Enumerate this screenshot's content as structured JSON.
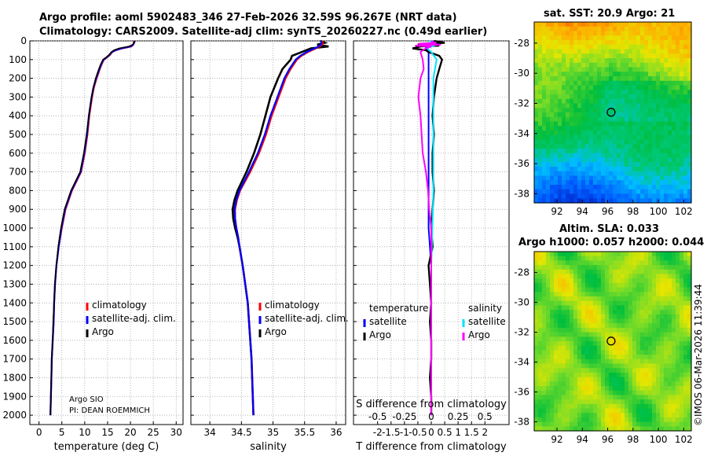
{
  "header": {
    "title_line1": "Argo profile: aoml 5902483_346 27-Feb-2026 32.59S 96.267E (NRT data)",
    "title_line2": "Climatology: CARS2009. Satellite-adj clim: synTS_20260227.nc (0.49d earlier)"
  },
  "colors": {
    "climatology": "#ff0000",
    "satellite_adj": "#0000ff",
    "argo": "#000000",
    "temp_diff_satellite": "#0000ff",
    "sal_diff_satellite": "#00e5ff",
    "diff_argo": "#ff00ff"
  },
  "chart_data": [
    {
      "type": "line",
      "id": "temperature",
      "title": "",
      "xlabel": "temperature (deg C)",
      "ylabel": "",
      "xlim": [
        -2,
        31.5
      ],
      "ylim": [
        0,
        2050
      ],
      "y_inverted": true,
      "xticks": [
        "0",
        "5",
        "10",
        "15",
        "20",
        "25",
        "30"
      ],
      "yticks": [
        "0",
        "100",
        "200",
        "300",
        "400",
        "500",
        "600",
        "700",
        "800",
        "900",
        "1000",
        "1100",
        "1200",
        "1300",
        "1400",
        "1500",
        "1600",
        "1700",
        "1800",
        "1900",
        "2000"
      ],
      "legend": [
        "climatology",
        "satellite-adj. clim.",
        "Argo"
      ],
      "annotation_lines": [
        "Argo SIO",
        "PI: DEAN ROEMMICH"
      ],
      "series": [
        {
          "name": "climatology",
          "depth": [
            0,
            5,
            10,
            20,
            30,
            40,
            50,
            60,
            75,
            90,
            100,
            125,
            150,
            200,
            250,
            300,
            400,
            500,
            600,
            700,
            800,
            900,
            1000,
            1100,
            1200,
            1300,
            1400,
            1500,
            1600,
            1700,
            1800,
            1900,
            2000
          ],
          "values": [
            20.8,
            20.8,
            20.7,
            20.6,
            20.2,
            18.2,
            16.8,
            16.0,
            15.5,
            14.8,
            14.2,
            13.7,
            13.3,
            12.6,
            12.0,
            11.6,
            11.0,
            10.6,
            10.0,
            9.2,
            7.2,
            5.8,
            5.0,
            4.3,
            3.8,
            3.5,
            3.3,
            3.2,
            3.0,
            2.8,
            2.7,
            2.6,
            2.5
          ]
        },
        {
          "name": "satellite-adj. clim.",
          "depth": [
            0,
            5,
            10,
            20,
            30,
            40,
            50,
            60,
            75,
            90,
            100,
            125,
            150,
            200,
            250,
            300,
            400,
            500,
            600,
            700,
            800,
            900,
            1000,
            1100,
            1200,
            1300,
            1400,
            1500,
            1600,
            1700,
            1800,
            1900,
            2000
          ],
          "values": [
            20.9,
            20.9,
            20.8,
            20.6,
            20.0,
            18.0,
            16.7,
            15.9,
            15.4,
            14.7,
            14.1,
            13.6,
            13.2,
            12.5,
            11.9,
            11.5,
            10.9,
            10.5,
            9.9,
            9.1,
            7.1,
            5.7,
            4.9,
            4.3,
            3.8,
            3.5,
            3.3,
            3.2,
            3.0,
            2.8,
            2.7,
            2.6,
            2.5
          ]
        },
        {
          "name": "Argo",
          "depth": [
            0,
            5,
            10,
            20,
            30,
            40,
            50,
            60,
            75,
            90,
            100,
            125,
            150,
            200,
            250,
            300,
            400,
            500,
            600,
            700,
            800,
            900,
            1000,
            1100,
            1200,
            1300,
            1400,
            1500,
            1600,
            1700,
            1800,
            1900,
            2000
          ],
          "values": [
            20.9,
            20.9,
            20.8,
            20.5,
            19.6,
            17.5,
            16.4,
            15.8,
            15.3,
            14.6,
            14.0,
            13.5,
            13.1,
            12.4,
            11.9,
            11.5,
            10.9,
            10.4,
            9.8,
            9.0,
            7.0,
            5.6,
            4.8,
            4.2,
            3.8,
            3.5,
            3.3,
            3.1,
            3.0,
            2.8,
            2.7,
            2.6,
            2.5
          ]
        }
      ]
    },
    {
      "type": "line",
      "id": "salinity",
      "title": "",
      "xlabel": "salinity",
      "ylabel": "",
      "xlim": [
        33.7,
        36.15
      ],
      "ylim": [
        0,
        2050
      ],
      "y_inverted": true,
      "xticks": [
        "34",
        "34.5",
        "35",
        "35.5",
        "36"
      ],
      "legend": [
        "climatology",
        "satellite-adj. clim.",
        "Argo"
      ],
      "series": [
        {
          "name": "climatology",
          "depth": [
            0,
            10,
            20,
            30,
            40,
            60,
            80,
            100,
            150,
            200,
            300,
            400,
            500,
            600,
            700,
            800,
            850,
            900,
            950,
            1000,
            1050,
            1100,
            1200,
            1300,
            1400,
            1500,
            1600,
            1700,
            1800,
            1900,
            2000
          ],
          "values": [
            35.78,
            35.79,
            35.78,
            35.74,
            35.68,
            35.55,
            35.45,
            35.38,
            35.28,
            35.2,
            35.09,
            34.98,
            34.89,
            34.78,
            34.64,
            34.48,
            34.43,
            34.4,
            34.4,
            34.42,
            34.45,
            34.47,
            34.52,
            34.56,
            34.6,
            34.62,
            34.64,
            34.66,
            34.67,
            34.68,
            34.69
          ]
        },
        {
          "name": "satellite-adj. clim.",
          "depth": [
            0,
            10,
            20,
            30,
            40,
            60,
            80,
            100,
            150,
            200,
            300,
            400,
            500,
            600,
            700,
            800,
            850,
            900,
            950,
            1000,
            1050,
            1100,
            1200,
            1300,
            1400,
            1500,
            1600,
            1700,
            1800,
            1900,
            2000
          ],
          "values": [
            35.76,
            35.77,
            35.76,
            35.72,
            35.66,
            35.53,
            35.43,
            35.36,
            35.26,
            35.18,
            35.07,
            34.96,
            34.87,
            34.76,
            34.62,
            34.47,
            34.42,
            34.39,
            34.4,
            34.42,
            34.45,
            34.47,
            34.52,
            34.56,
            34.6,
            34.62,
            34.64,
            34.66,
            34.67,
            34.68,
            34.69
          ]
        },
        {
          "name": "Argo",
          "depth": [
            0,
            10,
            20,
            30,
            40,
            60,
            80,
            100,
            150,
            200,
            300,
            400,
            500,
            600,
            700,
            800,
            850,
            900,
            950,
            1000,
            1050,
            1100,
            1200,
            1300,
            1400,
            1500,
            1600,
            1700,
            1800,
            1900,
            2000
          ],
          "values": [
            35.75,
            35.82,
            35.7,
            35.88,
            35.6,
            35.45,
            35.3,
            35.28,
            35.15,
            35.08,
            34.96,
            34.88,
            34.8,
            34.7,
            34.58,
            34.44,
            34.39,
            34.36,
            34.37,
            34.4,
            34.44,
            34.47,
            34.52,
            34.56,
            34.6,
            34.62,
            34.64,
            34.66,
            34.67,
            34.68,
            34.69
          ]
        }
      ]
    },
    {
      "type": "line",
      "id": "difference",
      "title": "",
      "xlabel": "T difference from climatology",
      "secondary_xlabel": "S difference from climatology",
      "ylabel": "",
      "xlim": [
        -2.9,
        2.9
      ],
      "ylim": [
        0,
        2050
      ],
      "y_inverted": true,
      "xticks": [
        "-2",
        "-1.5",
        "-1",
        "-0.5",
        "0",
        "0.5",
        "1",
        "1.5",
        "2"
      ],
      "secondary_xticks": [
        "-0.5",
        "-0.25",
        "0",
        "0.25",
        "0.5"
      ],
      "legend": [
        "temperature",
        "satellite",
        "Argo",
        "salinity",
        "satellite",
        "Argo"
      ],
      "series": [
        {
          "name": "temperature satellite",
          "depth": [
            0,
            20,
            30,
            40,
            60,
            100,
            200,
            400,
            600,
            800,
            1000,
            1200,
            1400,
            1600,
            1800,
            2000
          ],
          "values": [
            0.1,
            0.0,
            -0.2,
            -0.2,
            -0.1,
            -0.1,
            -0.1,
            -0.1,
            -0.1,
            -0.1,
            -0.1,
            0.0,
            0.0,
            0.0,
            0.0,
            0.0
          ]
        },
        {
          "name": "temperature Argo",
          "depth": [
            0,
            10,
            20,
            25,
            30,
            40,
            50,
            60,
            80,
            100,
            150,
            200,
            300,
            400,
            500,
            600,
            700,
            800,
            900,
            1000,
            1100,
            1200,
            1300,
            1400,
            1500,
            1600,
            1700,
            1800,
            1900,
            2000
          ],
          "values": [
            0.1,
            0.5,
            -0.5,
            0.3,
            -0.4,
            -0.7,
            -0.2,
            -0.1,
            0.3,
            0.4,
            0.3,
            0.2,
            0.1,
            0.05,
            0.1,
            0.05,
            0.05,
            0.1,
            0.05,
            0.0,
            0.05,
            -0.1,
            -0.05,
            0.0,
            -0.05,
            0.0,
            0.0,
            -0.05,
            0.0,
            0.0
          ]
        },
        {
          "name": "salinity satellite",
          "depth": [
            0,
            20,
            40,
            60,
            100,
            200,
            400,
            600,
            800,
            1000,
            1200,
            1400,
            1600,
            1800,
            2000
          ],
          "values": [
            -0.02,
            0.05,
            -0.04,
            0.0,
            0.05,
            0.02,
            0.02,
            0.02,
            0.02,
            0.01,
            0.0,
            0.0,
            0.0,
            0.0,
            0.0
          ]
        },
        {
          "name": "salinity Argo",
          "depth": [
            0,
            10,
            15,
            20,
            25,
            30,
            40,
            50,
            60,
            80,
            100,
            150,
            200,
            300,
            400,
            500,
            600,
            700,
            800,
            900,
            1000,
            1100,
            1200,
            1300,
            1400,
            1500,
            1600,
            1700,
            1800,
            1900,
            2000
          ],
          "values": [
            0.0,
            0.03,
            -0.12,
            0.09,
            -0.15,
            0.0,
            -0.05,
            -0.08,
            -0.1,
            -0.09,
            -0.08,
            -0.07,
            -0.1,
            -0.12,
            -0.1,
            -0.09,
            -0.08,
            -0.05,
            -0.03,
            -0.02,
            0.0,
            0.0,
            0.0,
            0.0,
            0.0,
            0.0,
            0.0,
            0.0,
            0.0,
            0.0,
            0.0
          ]
        }
      ]
    },
    {
      "type": "heatmap",
      "id": "sst_map",
      "title": "sat. SST: 20.9 Argo: 21",
      "xticks": [
        "92",
        "94",
        "96",
        "98",
        "100",
        "102"
      ],
      "yticks": [
        "-28",
        "-30",
        "-32",
        "-34",
        "-36",
        "-38"
      ],
      "xlim": [
        90.2,
        102.6
      ],
      "ylim": [
        -38.6,
        -26.6
      ],
      "marker": {
        "lon": 96.27,
        "lat": -32.59
      }
    },
    {
      "type": "heatmap",
      "id": "sla_map",
      "title_line1": "Altim. SLA: 0.033",
      "title_line2": "Argo h1000: 0.057 h2000: 0.044",
      "xticks": [
        "92",
        "94",
        "96",
        "98",
        "100",
        "102"
      ],
      "yticks": [
        "-28",
        "-30",
        "-32",
        "-34",
        "-36",
        "-38"
      ],
      "xlim": [
        90.2,
        102.6
      ],
      "ylim": [
        -38.6,
        -26.6
      ],
      "marker": {
        "lon": 96.27,
        "lat": -32.59
      }
    }
  ],
  "footer": {
    "imos_stamp": "©IMOS 06-Mar-2026 11:39:44"
  }
}
